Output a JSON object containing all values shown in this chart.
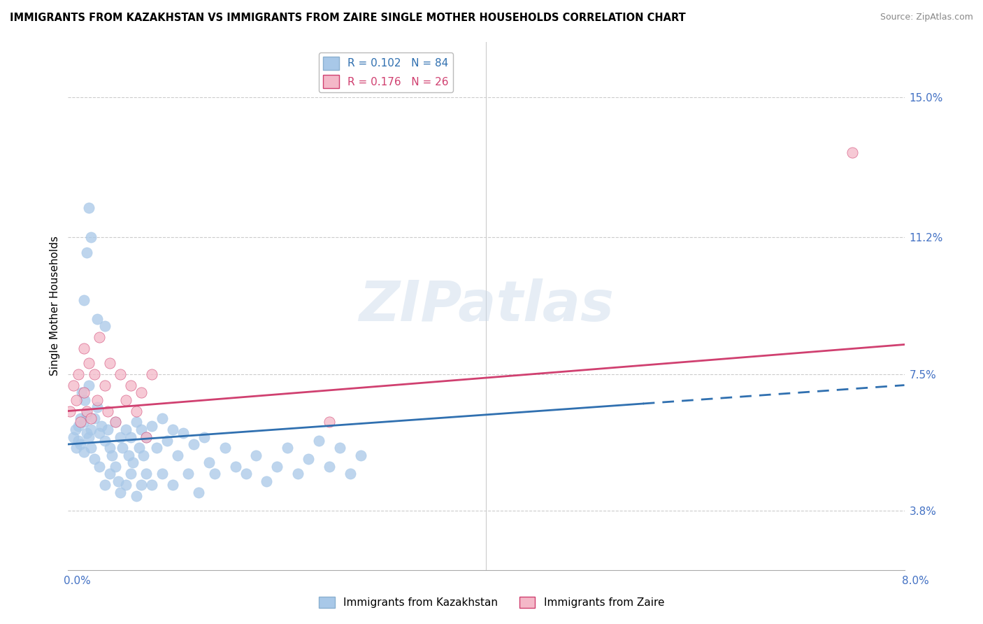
{
  "title": "IMMIGRANTS FROM KAZAKHSTAN VS IMMIGRANTS FROM ZAIRE SINGLE MOTHER HOUSEHOLDS CORRELATION CHART",
  "source": "Source: ZipAtlas.com",
  "ylabel": "Single Mother Households",
  "y_ticks": [
    3.8,
    7.5,
    11.2,
    15.0
  ],
  "y_tick_labels": [
    "3.8%",
    "7.5%",
    "11.2%",
    "15.0%"
  ],
  "x_min": 0.0,
  "x_max": 8.0,
  "y_min": 2.2,
  "y_max": 16.5,
  "kazakhstan_color": "#a8c8e8",
  "zaire_color": "#f4b8c8",
  "kazakhstan_trend_color": "#3070b0",
  "zaire_trend_color": "#d04070",
  "kazakhstan_R": 0.102,
  "kazakhstan_N": 84,
  "zaire_R": 0.176,
  "zaire_N": 26,
  "kaz_line_x0": 0.0,
  "kaz_line_y0": 5.6,
  "kaz_line_x1": 8.0,
  "kaz_line_y1": 7.2,
  "kaz_solid_end": 5.5,
  "zaire_line_x0": 0.0,
  "zaire_line_y0": 6.5,
  "zaire_line_x1": 8.0,
  "zaire_line_y1": 8.3,
  "kazakhstan_points": [
    [
      0.05,
      5.8
    ],
    [
      0.07,
      6.0
    ],
    [
      0.08,
      5.5
    ],
    [
      0.1,
      5.7
    ],
    [
      0.1,
      6.1
    ],
    [
      0.12,
      5.6
    ],
    [
      0.12,
      6.3
    ],
    [
      0.13,
      7.0
    ],
    [
      0.15,
      6.2
    ],
    [
      0.15,
      5.4
    ],
    [
      0.16,
      6.8
    ],
    [
      0.18,
      5.9
    ],
    [
      0.18,
      6.4
    ],
    [
      0.2,
      5.8
    ],
    [
      0.2,
      7.2
    ],
    [
      0.22,
      6.0
    ],
    [
      0.22,
      5.5
    ],
    [
      0.25,
      6.3
    ],
    [
      0.25,
      5.2
    ],
    [
      0.28,
      6.6
    ],
    [
      0.3,
      5.9
    ],
    [
      0.3,
      5.0
    ],
    [
      0.32,
      6.1
    ],
    [
      0.35,
      5.7
    ],
    [
      0.35,
      4.5
    ],
    [
      0.38,
      6.0
    ],
    [
      0.4,
      5.5
    ],
    [
      0.4,
      4.8
    ],
    [
      0.42,
      5.3
    ],
    [
      0.45,
      6.2
    ],
    [
      0.45,
      5.0
    ],
    [
      0.48,
      4.6
    ],
    [
      0.5,
      5.8
    ],
    [
      0.5,
      4.3
    ],
    [
      0.52,
      5.5
    ],
    [
      0.55,
      6.0
    ],
    [
      0.55,
      4.5
    ],
    [
      0.58,
      5.3
    ],
    [
      0.6,
      5.8
    ],
    [
      0.6,
      4.8
    ],
    [
      0.62,
      5.1
    ],
    [
      0.65,
      6.2
    ],
    [
      0.65,
      4.2
    ],
    [
      0.68,
      5.5
    ],
    [
      0.7,
      6.0
    ],
    [
      0.7,
      4.5
    ],
    [
      0.72,
      5.3
    ],
    [
      0.75,
      5.8
    ],
    [
      0.75,
      4.8
    ],
    [
      0.8,
      6.1
    ],
    [
      0.8,
      4.5
    ],
    [
      0.85,
      5.5
    ],
    [
      0.9,
      6.3
    ],
    [
      0.9,
      4.8
    ],
    [
      0.95,
      5.7
    ],
    [
      1.0,
      6.0
    ],
    [
      1.0,
      4.5
    ],
    [
      1.05,
      5.3
    ],
    [
      1.1,
      5.9
    ],
    [
      1.15,
      4.8
    ],
    [
      1.2,
      5.6
    ],
    [
      1.25,
      4.3
    ],
    [
      1.3,
      5.8
    ],
    [
      1.35,
      5.1
    ],
    [
      1.4,
      4.8
    ],
    [
      1.5,
      5.5
    ],
    [
      1.6,
      5.0
    ],
    [
      1.7,
      4.8
    ],
    [
      1.8,
      5.3
    ],
    [
      1.9,
      4.6
    ],
    [
      2.0,
      5.0
    ],
    [
      2.1,
      5.5
    ],
    [
      2.2,
      4.8
    ],
    [
      2.3,
      5.2
    ],
    [
      2.4,
      5.7
    ],
    [
      2.5,
      5.0
    ],
    [
      2.6,
      5.5
    ],
    [
      2.7,
      4.8
    ],
    [
      2.8,
      5.3
    ],
    [
      0.15,
      9.5
    ],
    [
      0.18,
      10.8
    ],
    [
      0.2,
      12.0
    ],
    [
      0.22,
      11.2
    ],
    [
      0.28,
      9.0
    ],
    [
      0.35,
      8.8
    ]
  ],
  "zaire_points": [
    [
      0.02,
      6.5
    ],
    [
      0.05,
      7.2
    ],
    [
      0.08,
      6.8
    ],
    [
      0.1,
      7.5
    ],
    [
      0.12,
      6.2
    ],
    [
      0.15,
      7.0
    ],
    [
      0.15,
      8.2
    ],
    [
      0.18,
      6.5
    ],
    [
      0.2,
      7.8
    ],
    [
      0.22,
      6.3
    ],
    [
      0.25,
      7.5
    ],
    [
      0.28,
      6.8
    ],
    [
      0.3,
      8.5
    ],
    [
      0.35,
      7.2
    ],
    [
      0.38,
      6.5
    ],
    [
      0.4,
      7.8
    ],
    [
      0.45,
      6.2
    ],
    [
      0.5,
      7.5
    ],
    [
      0.55,
      6.8
    ],
    [
      0.6,
      7.2
    ],
    [
      0.65,
      6.5
    ],
    [
      0.7,
      7.0
    ],
    [
      0.75,
      5.8
    ],
    [
      0.8,
      7.5
    ],
    [
      2.5,
      6.2
    ],
    [
      7.5,
      13.5
    ]
  ]
}
